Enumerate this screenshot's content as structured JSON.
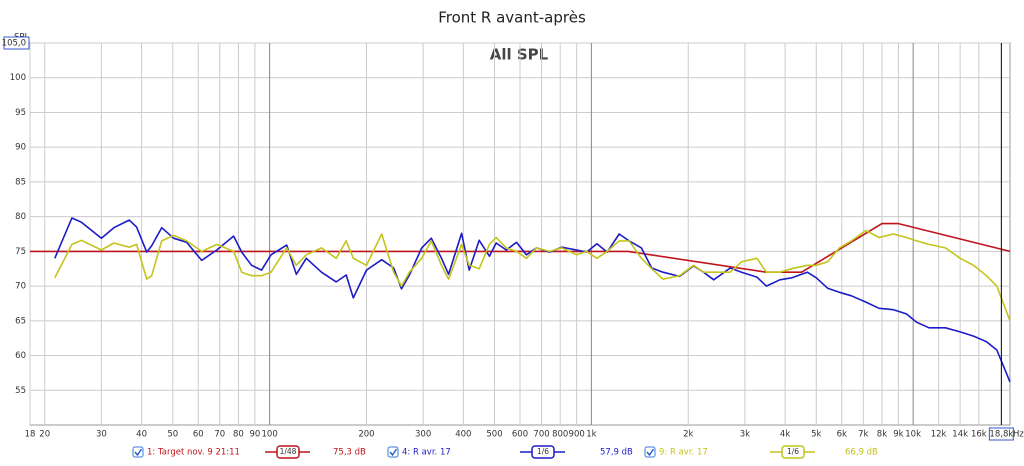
{
  "chart_data": {
    "type": "line",
    "title": "Front R avant-après",
    "subtitle": "All SPL",
    "y_label": "SPL",
    "x_label": "Hz",
    "log_x": true,
    "grid": true,
    "xlim": [
      18,
      20000
    ],
    "ylim": [
      50,
      105
    ],
    "yticks": [
      55,
      60,
      65,
      70,
      75,
      80,
      85,
      90,
      95,
      100,
      {
        "value": 105,
        "label": "105,0"
      }
    ],
    "xticks": [
      18,
      20,
      30,
      40,
      50,
      60,
      70,
      80,
      90,
      100,
      200,
      300,
      400,
      500,
      600,
      700,
      800,
      900,
      {
        "value": 1000,
        "label": "1k"
      },
      {
        "value": 2000,
        "label": "2k"
      },
      {
        "value": 3000,
        "label": "3k"
      },
      {
        "value": 4000,
        "label": "4k"
      },
      {
        "value": 5000,
        "label": "5k"
      },
      {
        "value": 6000,
        "label": "6k"
      },
      {
        "value": 7000,
        "label": "7k"
      },
      {
        "value": 8000,
        "label": "8k"
      },
      {
        "value": 9000,
        "label": "9k"
      },
      {
        "value": 10000,
        "label": "10k"
      },
      {
        "value": 12000,
        "label": "12k"
      },
      {
        "value": 14000,
        "label": "14k"
      },
      {
        "value": 16000,
        "label": "16k"
      }
    ],
    "cursor": {
      "value": 18800,
      "label": "18,8k"
    },
    "x": [
      21.5,
      24.3,
      26,
      30,
      32.8,
      36.6,
      38.6,
      41.5,
      43,
      46.2,
      50.3,
      55.2,
      61.5,
      68.5,
      77.3,
      81.9,
      87.9,
      94.4,
      101,
      113,
      121,
      130,
      145,
      161,
      173,
      182,
      200,
      223,
      243,
      257,
      272,
      297,
      318,
      342,
      360,
      395,
      417,
      448,
      482,
      506,
      544,
      585,
      628,
      675,
      742,
      808,
      900,
      967,
      1040,
      1120,
      1220,
      1310,
      1430,
      1540,
      1670,
      1880,
      2080,
      2230,
      2400,
      2700,
      2930,
      3270,
      3500,
      3850,
      4200,
      4690,
      5000,
      5420,
      5900,
      6430,
      7130,
      7840,
      8690,
      9530,
      10250,
      11200,
      12600,
      14000,
      15400,
      16900,
      18200,
      20000
    ],
    "series": [
      {
        "name": "1: Target nov. 9 21:11",
        "smoothing": "1/48",
        "readout": "75,3 dB",
        "color": "#c0141a",
        "x": [
          18,
          1300,
          3500,
          4500,
          8000,
          9000,
          20000
        ],
        "values": [
          75,
          75,
          72,
          72,
          79,
          79,
          75
        ]
      },
      {
        "name": "4: R avr. 17",
        "smoothing": "1/6",
        "readout": "57,9 dB",
        "color": "#1c1cc8",
        "values": [
          74.0,
          79.8,
          79.2,
          76.9,
          78.4,
          79.5,
          78.5,
          74.9,
          75.8,
          78.4,
          76.9,
          76.3,
          73.7,
          75.2,
          77.2,
          74.9,
          73.0,
          72.3,
          74.5,
          75.9,
          71.7,
          74.0,
          72.0,
          70.6,
          71.6,
          68.3,
          72.3,
          73.8,
          72.6,
          69.6,
          71.6,
          75.5,
          76.9,
          74.0,
          71.7,
          77.6,
          72.3,
          76.6,
          74.3,
          76.2,
          75.2,
          76.3,
          74.5,
          75.5,
          74.9,
          75.6,
          75.2,
          74.9,
          76.1,
          74.9,
          77.5,
          76.5,
          75.5,
          72.6,
          72.0,
          71.4,
          72.9,
          72.0,
          70.9,
          72.6,
          72.0,
          71.3,
          70.0,
          70.9,
          71.2,
          72.0,
          71.2,
          69.7,
          69.1,
          68.6,
          67.7,
          66.8,
          66.6,
          66.0,
          64.8,
          64.0,
          64.0,
          63.4,
          62.8,
          62.0,
          60.8,
          56.2
        ]
      },
      {
        "name": "9: R avr. 17",
        "smoothing": "1/6",
        "readout": "66,9 dB",
        "color": "#c4c41c",
        "values": [
          71.2,
          76.0,
          76.6,
          75.2,
          76.2,
          75.6,
          76.0,
          71.0,
          71.5,
          76.5,
          77.3,
          76.5,
          75.0,
          76.0,
          75.0,
          72.0,
          71.5,
          71.5,
          72.0,
          75.5,
          73.0,
          74.5,
          75.5,
          74.0,
          76.5,
          74.0,
          73.0,
          77.5,
          72.0,
          70.0,
          72.0,
          74.0,
          76.5,
          73.0,
          71.0,
          76.0,
          73.0,
          72.5,
          76.0,
          77.0,
          75.5,
          75.0,
          74.0,
          75.5,
          75.0,
          75.5,
          74.5,
          75.0,
          74.0,
          75.0,
          76.5,
          76.5,
          74.0,
          72.5,
          71.0,
          71.5,
          73.0,
          72.0,
          72.0,
          72.0,
          73.5,
          74.0,
          72.0,
          72.0,
          72.5,
          73.0,
          73.0,
          73.5,
          75.5,
          76.5,
          78.0,
          77.0,
          77.5,
          77.0,
          76.5,
          76.0,
          75.5,
          74.0,
          73.0,
          71.5,
          70.0,
          65.0
        ]
      }
    ]
  }
}
